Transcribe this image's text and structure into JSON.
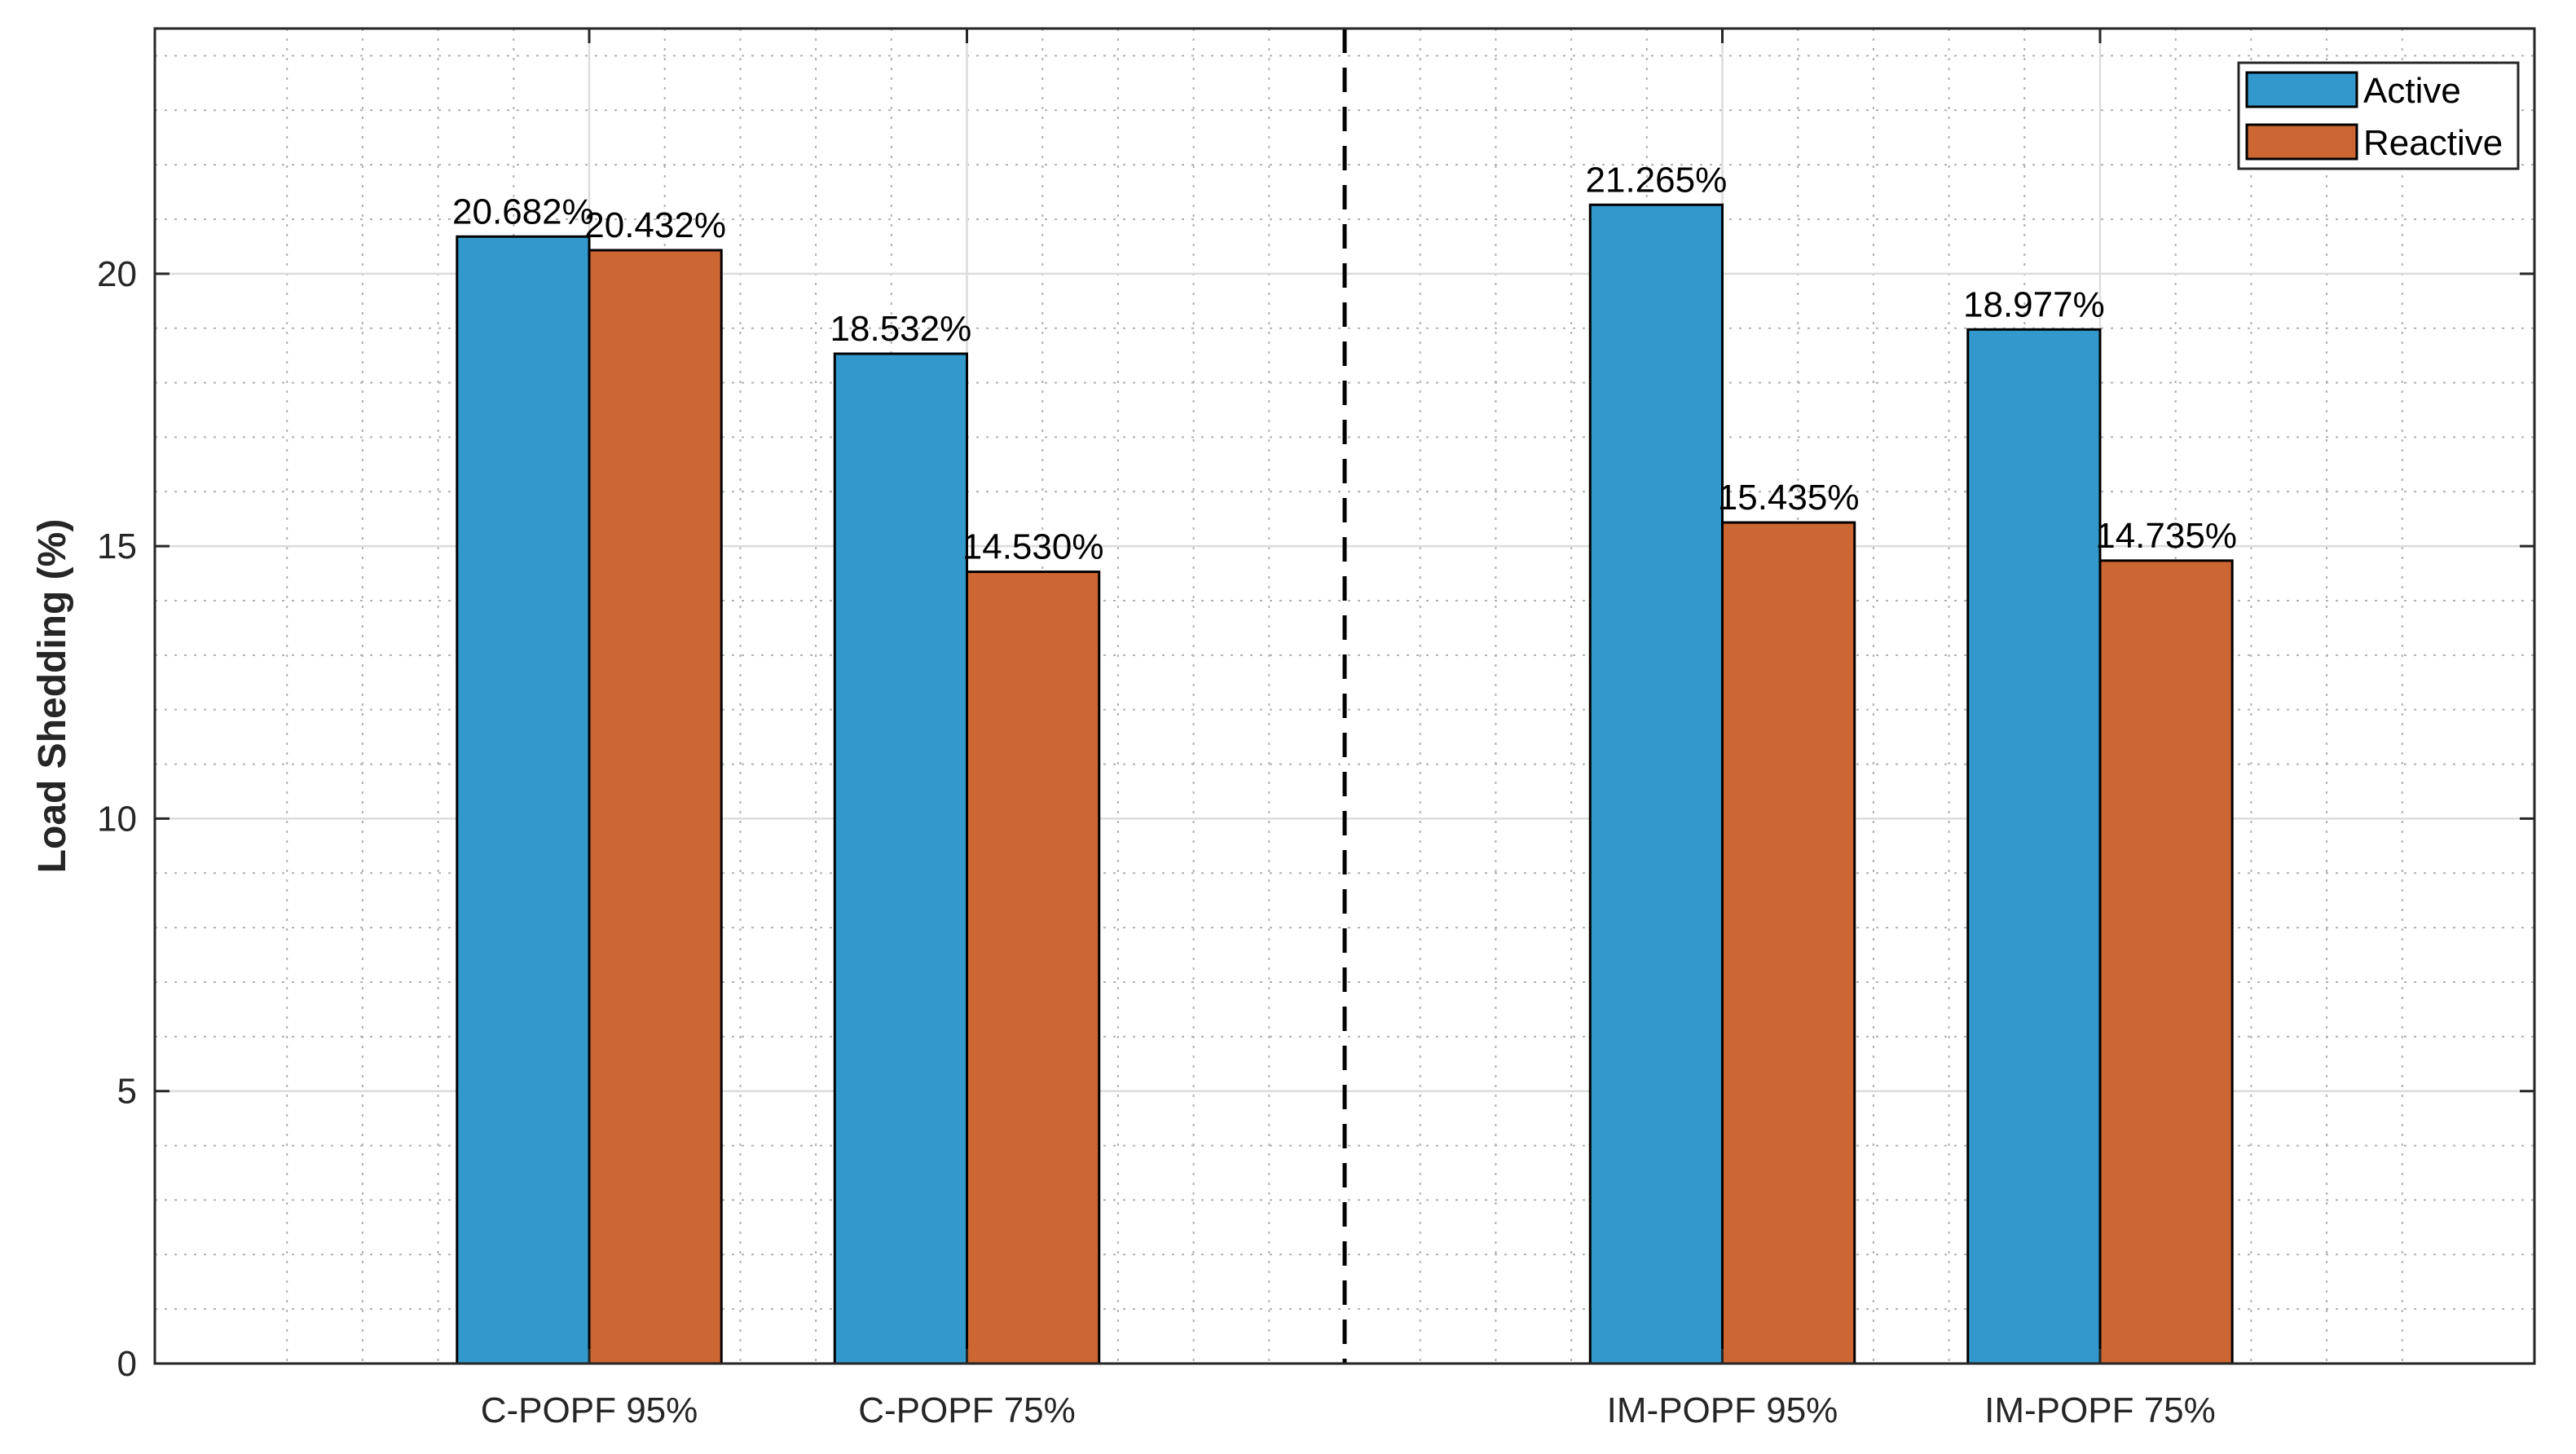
{
  "chart_data": {
    "type": "bar",
    "title": "",
    "xlabel": "",
    "ylabel": "Load Shedding (%)",
    "ylim": [
      0,
      24.5
    ],
    "yticks": [
      0,
      5,
      10,
      15,
      20
    ],
    "grid": true,
    "minor_grid": true,
    "categories": [
      "C-POPF 95%",
      "C-POPF 75%",
      "IM-POPF 95%",
      "IM-POPF 75%"
    ],
    "category_positions": [
      1,
      2,
      4,
      5
    ],
    "xlim": [
      -0.15,
      6.15
    ],
    "separator_x": 3,
    "series": [
      {
        "name": "Active",
        "color": "#3399cc",
        "values": [
          20.682,
          18.532,
          21.265,
          18.977
        ],
        "labels": [
          "20.682%",
          "18.532%",
          "21.265%",
          "18.977%"
        ]
      },
      {
        "name": "Reactive",
        "color": "#cc6633",
        "values": [
          20.432,
          14.53,
          15.435,
          14.735
        ],
        "labels": [
          "20.432%",
          "14.530%",
          "15.435%",
          "14.735%"
        ]
      }
    ],
    "legend": {
      "position": "top-right",
      "entries": [
        "Active",
        "Reactive"
      ]
    }
  }
}
